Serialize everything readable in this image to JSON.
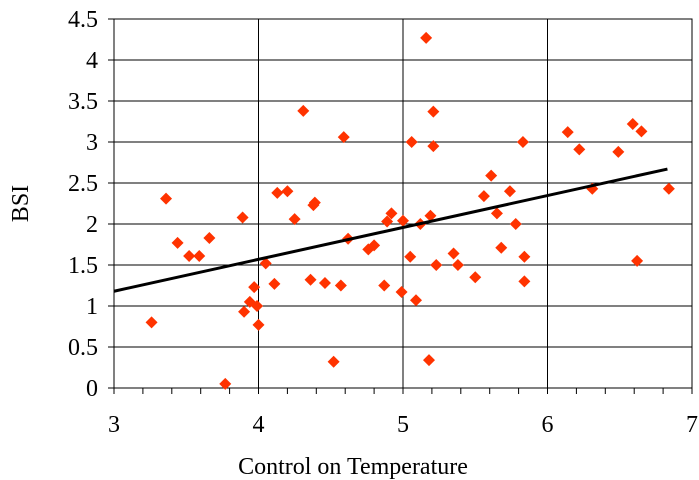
{
  "chart_data": {
    "type": "scatter",
    "title": "",
    "xlabel": "Control on Temperature",
    "ylabel": "BSI",
    "xlim": [
      3,
      7
    ],
    "ylim": [
      0,
      4.5
    ],
    "x_ticks": [
      "3",
      "4",
      "5",
      "6",
      "7"
    ],
    "y_ticks": [
      "0",
      "0.5",
      "1",
      "1.5",
      "2",
      "2.5",
      "3",
      "3.5",
      "4",
      "4.5"
    ],
    "grid": true,
    "marker": "diamond",
    "marker_color": "#ff3300",
    "trendline": {
      "type": "linear",
      "x": [
        3.0,
        6.83
      ],
      "y": [
        1.18,
        2.67
      ],
      "color": "#000000"
    },
    "points": [
      [
        3.26,
        0.8
      ],
      [
        3.36,
        2.31
      ],
      [
        3.44,
        1.77
      ],
      [
        3.52,
        1.61
      ],
      [
        3.59,
        1.61
      ],
      [
        3.66,
        1.83
      ],
      [
        3.77,
        0.05
      ],
      [
        3.89,
        2.08
      ],
      [
        3.9,
        0.93
      ],
      [
        3.94,
        1.05
      ],
      [
        3.97,
        1.23
      ],
      [
        3.99,
        1.0
      ],
      [
        4.0,
        0.77
      ],
      [
        4.05,
        1.52
      ],
      [
        4.11,
        1.27
      ],
      [
        4.13,
        2.38
      ],
      [
        4.2,
        2.4
      ],
      [
        4.25,
        2.06
      ],
      [
        4.31,
        3.38
      ],
      [
        4.36,
        1.32
      ],
      [
        4.38,
        2.23
      ],
      [
        4.39,
        2.26
      ],
      [
        4.46,
        1.28
      ],
      [
        4.52,
        0.32
      ],
      [
        4.57,
        1.25
      ],
      [
        4.59,
        3.06
      ],
      [
        4.62,
        1.82
      ],
      [
        4.76,
        1.69
      ],
      [
        4.8,
        1.74
      ],
      [
        4.87,
        1.25
      ],
      [
        4.89,
        2.03
      ],
      [
        4.92,
        2.13
      ],
      [
        4.99,
        1.17
      ],
      [
        5.0,
        2.04
      ],
      [
        5.05,
        1.6
      ],
      [
        5.06,
        3.0
      ],
      [
        5.09,
        1.07
      ],
      [
        5.12,
        2.0
      ],
      [
        5.16,
        4.27
      ],
      [
        5.18,
        0.34
      ],
      [
        5.19,
        2.1
      ],
      [
        5.21,
        3.37
      ],
      [
        5.21,
        2.95
      ],
      [
        5.23,
        1.5
      ],
      [
        5.35,
        1.64
      ],
      [
        5.38,
        1.5
      ],
      [
        5.5,
        1.35
      ],
      [
        5.56,
        2.34
      ],
      [
        5.61,
        2.59
      ],
      [
        5.65,
        2.13
      ],
      [
        5.68,
        1.71
      ],
      [
        5.74,
        2.4
      ],
      [
        5.78,
        2.0
      ],
      [
        5.83,
        3.0
      ],
      [
        5.84,
        1.3
      ],
      [
        5.84,
        1.6
      ],
      [
        6.14,
        3.12
      ],
      [
        6.22,
        2.91
      ],
      [
        6.31,
        2.43
      ],
      [
        6.49,
        2.88
      ],
      [
        6.59,
        3.22
      ],
      [
        6.62,
        1.55
      ],
      [
        6.65,
        3.13
      ],
      [
        6.84,
        2.43
      ]
    ]
  }
}
